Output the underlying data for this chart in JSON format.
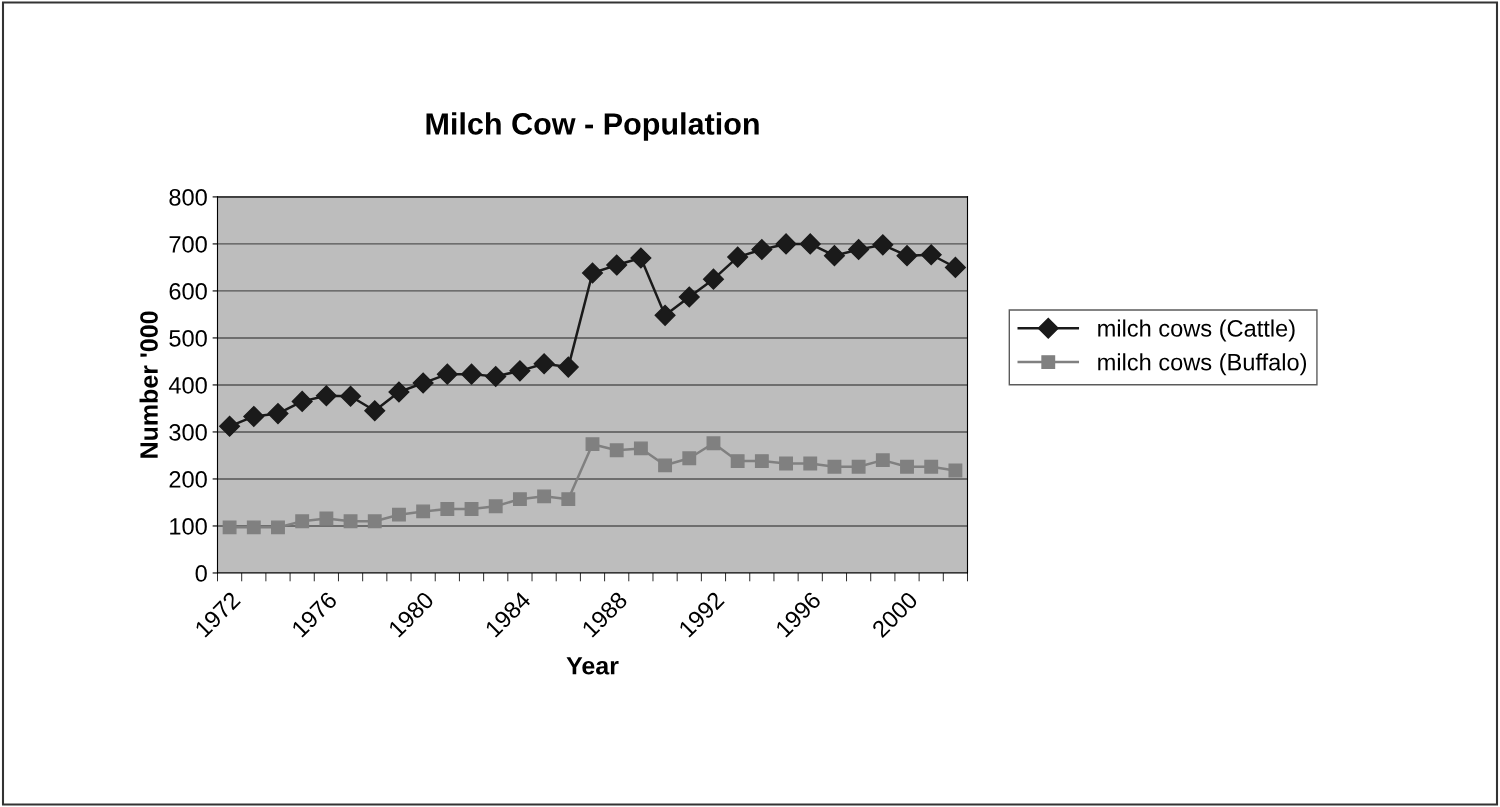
{
  "chart_data": {
    "type": "line",
    "title": "Milch Cow - Population",
    "xlabel": "Year",
    "ylabel": "Number '000",
    "categories": [
      "1972",
      null,
      null,
      null,
      "1976",
      null,
      null,
      null,
      "1980",
      null,
      null,
      null,
      "1984",
      null,
      null,
      null,
      "1988",
      null,
      null,
      null,
      "1992",
      null,
      null,
      null,
      "1996",
      null,
      null,
      null,
      "2000",
      null,
      null
    ],
    "series": [
      {
        "name": "milch cows (Cattle)",
        "color": "#1a1a1a",
        "marker": "diamond",
        "values": [
          312,
          333,
          339,
          365,
          377,
          376,
          345,
          385,
          404,
          423,
          423,
          418,
          430,
          445,
          438,
          638,
          655,
          670,
          548,
          587,
          625,
          672,
          688,
          700,
          700,
          675,
          688,
          698,
          675,
          677,
          650
        ]
      },
      {
        "name": "milch cows (Buffalo)",
        "color": "#808080",
        "marker": "square",
        "values": [
          97,
          97,
          97,
          110,
          116,
          110,
          110,
          124,
          131,
          136,
          136,
          142,
          157,
          163,
          157,
          274,
          261,
          265,
          229,
          244,
          276,
          238,
          238,
          233,
          233,
          226,
          226,
          240,
          226,
          226,
          218
        ]
      }
    ],
    "ylim": [
      0,
      800
    ],
    "yticks": [
      0,
      100,
      200,
      300,
      400,
      500,
      600,
      700,
      800
    ],
    "grid": "y",
    "legend": "right",
    "line_style": "solid"
  }
}
